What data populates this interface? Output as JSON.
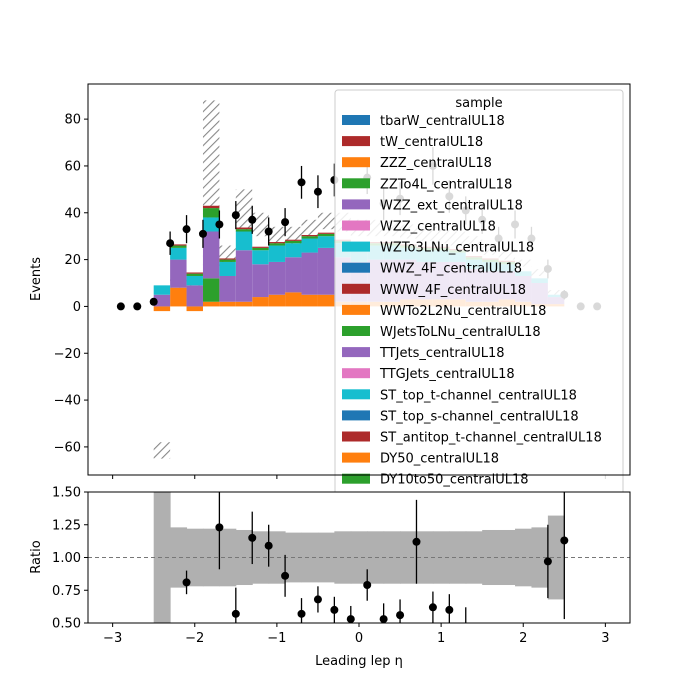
{
  "chart_data": [
    {
      "type": "bar",
      "stacked": true,
      "xlabel": "",
      "ylabel": "Events",
      "xlim": [
        -3.3,
        3.3
      ],
      "ylim": [
        -72,
        95
      ],
      "xticks": [
        -3,
        -2,
        -1,
        0,
        1,
        2,
        3
      ],
      "yticks": [
        -60,
        -40,
        -20,
        0,
        20,
        40,
        60,
        80
      ],
      "bin_edges": [
        -2.5,
        -2.3,
        -2.1,
        -1.9,
        -1.7,
        -1.5,
        -1.3,
        -1.1,
        -0.9,
        -0.7,
        -0.5,
        -0.3,
        -0.1,
        0.1,
        0.3,
        0.5,
        0.7,
        0.9,
        1.1,
        1.3,
        1.5,
        1.7,
        1.9,
        2.1,
        2.3,
        2.5
      ],
      "series": [
        {
          "name": "DY50_centralUL18",
          "color": "#ff7f0e",
          "values": [
            -2,
            8,
            -2,
            2,
            2,
            2,
            4,
            5,
            6,
            5,
            5,
            2,
            2,
            2,
            2,
            3,
            3,
            3,
            3,
            2,
            2,
            3,
            2,
            1,
            1
          ]
        },
        {
          "name": "DY10to50_centralUL18",
          "color": "#2ca02c",
          "values": [
            0,
            0,
            0,
            10,
            0,
            0,
            0,
            0,
            0,
            0,
            0,
            0,
            0,
            0,
            0,
            0,
            0,
            0,
            0,
            0,
            0,
            0,
            0,
            0,
            0
          ]
        },
        {
          "name": "TTJets_centralUL18",
          "color": "#9467bd",
          "values": [
            5,
            12,
            9,
            20,
            11,
            22,
            14,
            14,
            15,
            18,
            20,
            19,
            17,
            18,
            18,
            17,
            16,
            16,
            16,
            14,
            13,
            12,
            11,
            9,
            3
          ]
        },
        {
          "name": "ST_top_t-channel_centralUL18",
          "color": "#17becf",
          "values": [
            4,
            5,
            4,
            6,
            6,
            8,
            6,
            7,
            6,
            6,
            5,
            6,
            6,
            6,
            6,
            5,
            5,
            5,
            4,
            4,
            4,
            3,
            2,
            2,
            1
          ]
        },
        {
          "name": "ZZTo4L_centralUL18",
          "color": "#2ca02c",
          "values": [
            0,
            1,
            1,
            4,
            1,
            1,
            1,
            1,
            1,
            1,
            1,
            1,
            1,
            1,
            1,
            1,
            1,
            1,
            1,
            1,
            1,
            1,
            0,
            0,
            0
          ]
        },
        {
          "name": "ST_antitop_t-channel_centralUL18",
          "color": "#ad2a2a",
          "values": [
            0,
            0.5,
            0.5,
            1,
            0.5,
            0.7,
            0.5,
            0.5,
            0.5,
            0.5,
            0.5,
            0.5,
            0.5,
            0.5,
            0.5,
            0.5,
            0.5,
            0.5,
            0.5,
            0.5,
            0.5,
            0.5,
            0,
            0,
            0
          ]
        }
      ],
      "uncertainty_band": {
        "low": [
          -65,
          8,
          9,
          16,
          18,
          32,
          30,
          26,
          26,
          29,
          33,
          32,
          30,
          30,
          30,
          29,
          28,
          27,
          26,
          24,
          22,
          20,
          17,
          13,
          5
        ],
        "high": [
          -58,
          12,
          13,
          88,
          26,
          50,
          40,
          34,
          34,
          37,
          40,
          40,
          37,
          37,
          37,
          35,
          34,
          34,
          32,
          30,
          27,
          25,
          20,
          16,
          7
        ]
      },
      "data_points": {
        "x": [
          -2.9,
          -2.7,
          -2.5,
          -2.3,
          -2.1,
          -1.9,
          -1.7,
          -1.5,
          -1.3,
          -1.1,
          -0.9,
          -0.7,
          -0.5,
          -0.3,
          0.1,
          0.3,
          0.5,
          0.9,
          1.1,
          1.3,
          1.5,
          1.7,
          1.9,
          2.1,
          2.3,
          2.5,
          2.7,
          2.9
        ],
        "y": [
          0,
          0,
          2,
          27,
          33,
          31,
          35,
          39,
          37,
          32,
          36,
          53,
          49,
          54,
          55,
          44,
          46,
          60,
          47,
          41,
          37,
          29,
          35,
          29,
          16,
          5,
          0,
          0
        ],
        "err": [
          0,
          0,
          1.5,
          5,
          6,
          6,
          6,
          6,
          6,
          6,
          6,
          7,
          7,
          7,
          7,
          7,
          7,
          8,
          7,
          6,
          6,
          5,
          6,
          5,
          4,
          2,
          0,
          0
        ]
      },
      "legend": {
        "title": "sample",
        "placement": "top-right",
        "entries": [
          {
            "label": "tbarW_centralUL18",
            "color": "#1f77b4"
          },
          {
            "label": "tW_centralUL18",
            "color": "#ad2a2a"
          },
          {
            "label": "ZZZ_centralUL18",
            "color": "#ff7f0e"
          },
          {
            "label": "ZZTo4L_centralUL18",
            "color": "#2ca02c"
          },
          {
            "label": "WZZ_ext_centralUL18",
            "color": "#9467bd"
          },
          {
            "label": "WZZ_centralUL18",
            "color": "#e377c2"
          },
          {
            "label": "WZTo3LNu_centralUL18",
            "color": "#17becf"
          },
          {
            "label": "WWZ_4F_centralUL18",
            "color": "#1f77b4"
          },
          {
            "label": "WWW_4F_centralUL18",
            "color": "#ad2a2a"
          },
          {
            "label": "WWTo2L2Nu_centralUL18",
            "color": "#ff7f0e"
          },
          {
            "label": "WJetsToLNu_centralUL18",
            "color": "#2ca02c"
          },
          {
            "label": "TTJets_centralUL18",
            "color": "#9467bd"
          },
          {
            "label": "TTGJets_centralUL18",
            "color": "#e377c2"
          },
          {
            "label": "ST_top_t-channel_centralUL18",
            "color": "#17becf"
          },
          {
            "label": "ST_top_s-channel_centralUL18",
            "color": "#1f77b4"
          },
          {
            "label": "ST_antitop_t-channel_centralUL18",
            "color": "#ad2a2a"
          },
          {
            "label": "DY50_centralUL18",
            "color": "#ff7f0e"
          },
          {
            "label": "DY10to50_centralUL18",
            "color": "#2ca02c"
          }
        ]
      }
    },
    {
      "type": "scatter",
      "xlabel": "Leading lep η",
      "ylabel": "Ratio",
      "xlim": [
        -3.3,
        3.3
      ],
      "ylim": [
        0.5,
        1.5
      ],
      "xticks": [
        -3,
        -2,
        -1,
        0,
        1,
        2,
        3
      ],
      "yticks": [
        "0.50",
        "0.75",
        "1.00",
        "1.25",
        "1.50"
      ],
      "reference_line": 1.0,
      "band": {
        "bin_edges": [
          -2.5,
          -2.3,
          -2.1,
          -1.9,
          -1.7,
          -1.5,
          -1.3,
          -1.1,
          -0.9,
          -0.7,
          -0.5,
          -0.3,
          -0.1,
          0.1,
          0.3,
          0.5,
          0.7,
          0.9,
          1.1,
          1.3,
          1.5,
          1.7,
          1.9,
          2.1,
          2.3,
          2.5
        ],
        "low": [
          0.5,
          0.77,
          0.78,
          0.78,
          0.78,
          0.79,
          0.8,
          0.8,
          0.81,
          0.81,
          0.81,
          0.8,
          0.8,
          0.8,
          0.8,
          0.8,
          0.8,
          0.8,
          0.8,
          0.8,
          0.79,
          0.79,
          0.78,
          0.77,
          0.68
        ],
        "high": [
          1.5,
          1.23,
          1.22,
          1.22,
          1.22,
          1.21,
          1.2,
          1.2,
          1.19,
          1.19,
          1.19,
          1.2,
          1.2,
          1.2,
          1.2,
          1.2,
          1.2,
          1.2,
          1.2,
          1.2,
          1.21,
          1.21,
          1.22,
          1.23,
          1.32
        ]
      },
      "x": [
        -2.1,
        -1.7,
        -1.5,
        -1.3,
        -1.1,
        -0.9,
        -0.7,
        -0.5,
        -0.3,
        -0.1,
        0.1,
        0.3,
        0.5,
        0.7,
        0.9,
        1.1,
        1.3,
        2.3,
        2.5
      ],
      "y": [
        0.81,
        1.23,
        0.57,
        1.15,
        1.09,
        0.86,
        0.57,
        0.68,
        0.6,
        0.53,
        0.79,
        0.53,
        0.56,
        1.12,
        0.62,
        0.6,
        0.5,
        0.97,
        1.13
      ],
      "err": [
        0.09,
        0.32,
        0.2,
        0.2,
        0.16,
        0.16,
        0.12,
        0.1,
        0.1,
        0.1,
        0.12,
        0.12,
        0.12,
        0.32,
        0.12,
        0.12,
        0.12,
        0.28,
        0.6
      ]
    }
  ]
}
